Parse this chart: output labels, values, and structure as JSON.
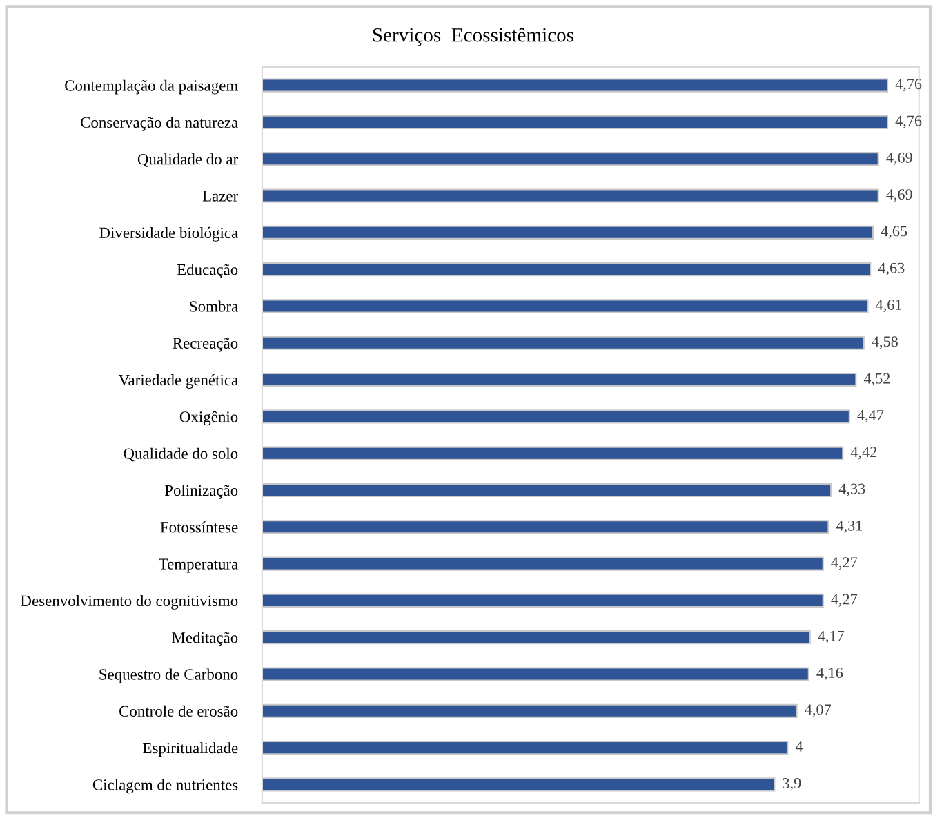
{
  "chart_data": {
    "type": "bar",
    "orientation": "horizontal",
    "title": "Serviços  Ecossistêmicos",
    "categories": [
      "Contemplação da paisagem",
      "Conservação da natureza",
      "Qualidade do ar",
      "Lazer",
      "Diversidade biológica",
      "Educação",
      "Sombra",
      "Recreação",
      "Variedade genética",
      "Oxigênio",
      "Qualidade do solo",
      "Polinização",
      "Fotossíntese",
      "Temperatura",
      "Desenvolvimento do cognitivismo",
      "Meditação",
      "Sequestro de Carbono",
      "Controle de erosão",
      "Espiritualidade",
      "Ciclagem de nutrientes"
    ],
    "values": [
      4.76,
      4.76,
      4.69,
      4.69,
      4.65,
      4.63,
      4.61,
      4.58,
      4.52,
      4.47,
      4.42,
      4.33,
      4.31,
      4.27,
      4.27,
      4.17,
      4.16,
      4.07,
      4,
      3.9
    ],
    "value_labels": [
      "4,76",
      "4,76",
      "4,69",
      "4,69",
      "4,65",
      "4,63",
      "4,61",
      "4,58",
      "4,52",
      "4,47",
      "4,42",
      "4,33",
      "4,31",
      "4,27",
      "4,27",
      "4,17",
      "4,16",
      "4,07",
      "4",
      "3,9"
    ],
    "color": "#2f5597",
    "xlim": [
      0,
      5
    ],
    "tick_labels": "y",
    "grid": false,
    "legend": false
  }
}
